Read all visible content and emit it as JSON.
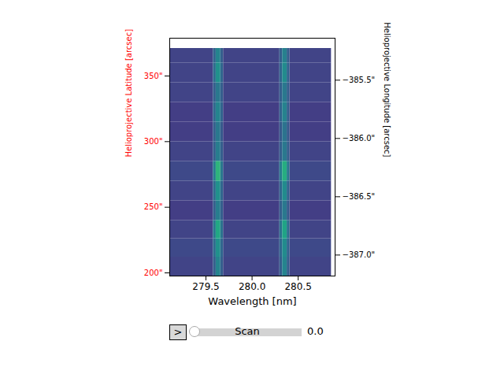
{
  "chart_data": {
    "type": "heatmap",
    "x_label": "Wavelength [nm]",
    "y_label": "Helioprojective Latitude [arcsec]",
    "y2_label": "Helioprojective Longitude [arcsec]",
    "xlim": [
      279.107,
      280.9
    ],
    "xticks": [
      279.5,
      {
        "value": 280,
        "label": "280.0"
      },
      280.5
    ],
    "ylim": [
      197.6,
      378.8
    ],
    "yticks": [
      {
        "value": 200,
        "label": "200\""
      },
      {
        "value": 250,
        "label": "250\""
      },
      {
        "value": 300,
        "label": "300\""
      },
      {
        "value": 350,
        "label": "350\""
      }
    ],
    "y2lim": [
      -387.18,
      -385.14
    ],
    "y2ticks": [
      {
        "value": -385.5,
        "label": "−385.5\""
      },
      {
        "value": -386,
        "label": "−386.0\""
      },
      {
        "value": -386.5,
        "label": "−386.5\""
      },
      {
        "value": -387,
        "label": "−387.0\""
      }
    ],
    "x_edges": [
      279.11,
      279.58,
      279.61,
      279.66,
      279.69,
      280.3,
      280.33,
      280.38,
      280.41,
      280.86
    ],
    "y_edges": [
      197.6,
      212,
      226,
      240,
      255,
      270,
      285,
      300,
      315,
      330,
      345,
      360,
      371
    ],
    "values": [
      [
        0.2,
        0.3,
        0.45,
        0.3,
        0.2,
        0.3,
        0.45,
        0.3,
        0.2
      ],
      [
        0.22,
        0.35,
        0.5,
        0.33,
        0.22,
        0.33,
        0.48,
        0.32,
        0.22
      ],
      [
        0.2,
        0.4,
        0.6,
        0.38,
        0.2,
        0.38,
        0.58,
        0.36,
        0.2
      ],
      [
        0.18,
        0.3,
        0.42,
        0.3,
        0.18,
        0.3,
        0.4,
        0.28,
        0.18
      ],
      [
        0.2,
        0.35,
        0.5,
        0.33,
        0.2,
        0.33,
        0.48,
        0.32,
        0.2
      ],
      [
        0.22,
        0.42,
        0.65,
        0.4,
        0.22,
        0.42,
        0.62,
        0.4,
        0.22
      ],
      [
        0.2,
        0.3,
        0.42,
        0.3,
        0.2,
        0.3,
        0.4,
        0.3,
        0.2
      ],
      [
        0.18,
        0.3,
        0.4,
        0.28,
        0.18,
        0.28,
        0.38,
        0.28,
        0.18
      ],
      [
        0.18,
        0.33,
        0.45,
        0.32,
        0.18,
        0.32,
        0.44,
        0.3,
        0.18
      ],
      [
        0.2,
        0.3,
        0.4,
        0.3,
        0.2,
        0.3,
        0.4,
        0.3,
        0.2
      ],
      [
        0.2,
        0.35,
        0.5,
        0.33,
        0.2,
        0.33,
        0.48,
        0.32,
        0.2
      ],
      [
        0.2,
        0.32,
        0.45,
        0.3,
        0.2,
        0.3,
        0.43,
        0.3,
        0.2
      ]
    ],
    "zlim": [
      0,
      1
    ],
    "color": "viridis",
    "slider": {
      "button": ">",
      "label": "Scan",
      "value": {
        "value": 0,
        "label": "0.0"
      }
    }
  }
}
